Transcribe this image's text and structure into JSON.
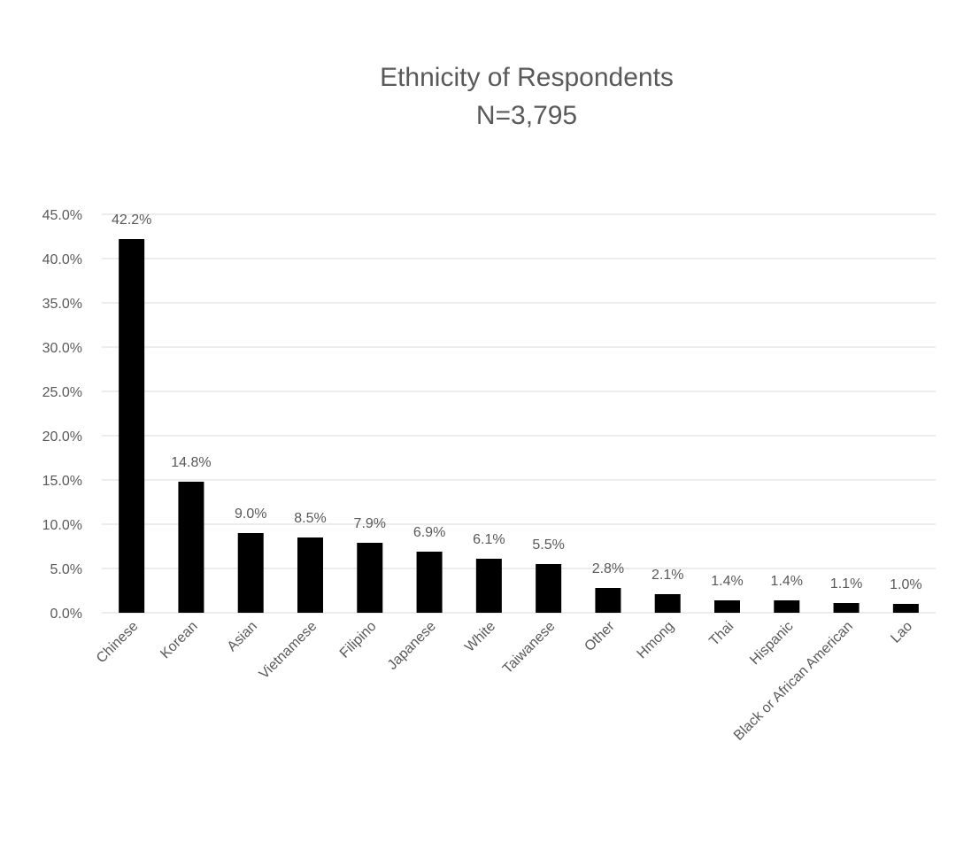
{
  "chart_data": {
    "type": "bar",
    "title": "Ethnicity of Respondents",
    "subtitle": "N=3,795",
    "xlabel": "",
    "ylabel": "",
    "ylim": [
      0,
      45
    ],
    "yticks": [
      "0.0%",
      "5.0%",
      "10.0%",
      "15.0%",
      "20.0%",
      "25.0%",
      "30.0%",
      "35.0%",
      "40.0%",
      "45.0%"
    ],
    "grid": true,
    "legend": "none",
    "bar_color": "#000000",
    "categories": [
      "Chinese",
      "Korean",
      "Asian",
      "Vietnamese",
      "Filipino",
      "Japanese",
      "White",
      "Taiwanese",
      "Other",
      "Hmong",
      "Thai",
      "Hispanic",
      "Black or African American",
      "Lao"
    ],
    "values": [
      42.2,
      14.8,
      9.0,
      8.5,
      7.9,
      6.9,
      6.1,
      5.5,
      2.8,
      2.1,
      1.4,
      1.4,
      1.1,
      1.0
    ],
    "data_labels": [
      "42.2%",
      "14.8%",
      "9.0%",
      "8.5%",
      "7.9%",
      "6.9%",
      "6.1%",
      "5.5%",
      "2.8%",
      "2.1%",
      "1.4%",
      "1.4%",
      "1.1%",
      "1.0%"
    ]
  }
}
